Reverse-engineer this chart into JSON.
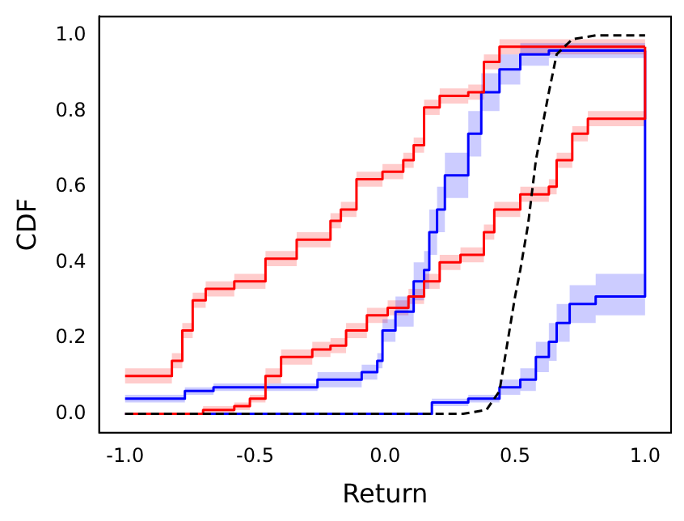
{
  "chart_data": {
    "type": "step",
    "xlabel": "Return",
    "ylabel": "CDF",
    "xlim": [
      -1.1,
      1.1
    ],
    "ylim": [
      -0.05,
      1.05
    ],
    "xticks": [
      {
        "value": -1,
        "label": "-1.0"
      },
      {
        "value": -0.5,
        "label": "-0.5"
      },
      {
        "value": 0,
        "label": "0.0"
      },
      {
        "value": 0.5,
        "label": "0.5"
      },
      {
        "value": 1,
        "label": "1.0"
      }
    ],
    "yticks": [
      {
        "value": 0,
        "label": "0.0"
      },
      {
        "value": 0.2,
        "label": "0.2"
      },
      {
        "value": 0.4,
        "label": "0.4"
      },
      {
        "value": 0.6,
        "label": "0.6"
      },
      {
        "value": 0.8,
        "label": "0.8"
      },
      {
        "value": 1,
        "label": "1.0"
      }
    ],
    "grid": false,
    "legend": false,
    "series": [
      {
        "color": "#ff0000",
        "x": [
          -1,
          -0.82,
          -0.78,
          -0.74,
          -0.69,
          -0.58,
          -0.46,
          -0.34,
          -0.21,
          -0.17,
          -0.11,
          -0.01,
          0.07,
          0.11,
          0.15,
          0.21,
          0.32,
          0.38,
          0.44,
          1
        ],
        "values": [
          0.1,
          0.14,
          0.22,
          0.3,
          0.33,
          0.35,
          0.41,
          0.46,
          0.51,
          0.54,
          0.62,
          0.64,
          0.67,
          0.71,
          0.81,
          0.84,
          0.85,
          0.93,
          0.97,
          0.97
        ],
        "lower": [
          0.08,
          0.12,
          0.2,
          0.28,
          0.31,
          0.33,
          0.39,
          0.44,
          0.49,
          0.52,
          0.6,
          0.62,
          0.65,
          0.69,
          0.79,
          0.82,
          0.83,
          0.91,
          0.95,
          0.95
        ],
        "upper": [
          0.12,
          0.16,
          0.24,
          0.32,
          0.35,
          0.37,
          0.43,
          0.48,
          0.53,
          0.56,
          0.64,
          0.66,
          0.69,
          0.73,
          0.83,
          0.86,
          0.87,
          0.95,
          0.99,
          0.99
        ]
      },
      {
        "color": "#ff0000",
        "x": [
          -1,
          -0.7,
          -0.58,
          -0.52,
          -0.46,
          -0.4,
          -0.28,
          -0.21,
          -0.15,
          -0.07,
          0.01,
          0.09,
          0.15,
          0.21,
          0.29,
          0.38,
          0.42,
          0.52,
          0.63,
          0.66,
          0.72,
          0.78,
          1
        ],
        "values": [
          0,
          0.01,
          0.02,
          0.04,
          0.1,
          0.15,
          0.17,
          0.18,
          0.22,
          0.26,
          0.28,
          0.31,
          0.35,
          0.4,
          0.42,
          0.48,
          0.54,
          0.58,
          0.6,
          0.67,
          0.74,
          0.78,
          0.97
        ],
        "lower": [
          0,
          0,
          0.01,
          0.03,
          0.08,
          0.13,
          0.15,
          0.16,
          0.2,
          0.24,
          0.26,
          0.29,
          0.33,
          0.38,
          0.4,
          0.46,
          0.52,
          0.56,
          0.58,
          0.65,
          0.72,
          0.76,
          0.76
        ],
        "upper": [
          0,
          0.02,
          0.03,
          0.05,
          0.12,
          0.17,
          0.19,
          0.2,
          0.24,
          0.28,
          0.3,
          0.33,
          0.37,
          0.42,
          0.44,
          0.5,
          0.56,
          0.6,
          0.62,
          0.69,
          0.76,
          0.8,
          0.8
        ]
      },
      {
        "color": "#0000ff",
        "x": [
          -1,
          -0.77,
          -0.66,
          -0.26,
          -0.09,
          -0.03,
          -0.01,
          0.04,
          0.11,
          0.15,
          0.17,
          0.2,
          0.23,
          0.32,
          0.37,
          0.44,
          0.52,
          0.63,
          1
        ],
        "values": [
          0.04,
          0.06,
          0.07,
          0.09,
          0.11,
          0.14,
          0.22,
          0.27,
          0.35,
          0.38,
          0.48,
          0.54,
          0.63,
          0.74,
          0.85,
          0.91,
          0.95,
          0.96,
          0.96
        ],
        "lower": [
          0.03,
          0.05,
          0.06,
          0.07,
          0.09,
          0.12,
          0.19,
          0.23,
          0.3,
          0.33,
          0.42,
          0.48,
          0.57,
          0.68,
          0.8,
          0.87,
          0.92,
          0.94,
          0.94
        ],
        "upper": [
          0.05,
          0.07,
          0.08,
          0.11,
          0.13,
          0.16,
          0.25,
          0.31,
          0.4,
          0.43,
          0.54,
          0.6,
          0.69,
          0.8,
          0.9,
          0.95,
          0.98,
          0.98,
          0.98
        ]
      },
      {
        "color": "#0000ff",
        "x": [
          -1,
          0.18,
          0.32,
          0.44,
          0.52,
          0.58,
          0.63,
          0.66,
          0.71,
          0.81,
          1
        ],
        "values": [
          0,
          0.03,
          0.04,
          0.07,
          0.09,
          0.15,
          0.19,
          0.24,
          0.29,
          0.31,
          0.96
        ],
        "lower": [
          null,
          0.02,
          0.03,
          0.05,
          0.06,
          0.11,
          0.14,
          0.19,
          0.24,
          0.26,
          0.26
        ],
        "upper": [
          null,
          0.04,
          0.05,
          0.09,
          0.12,
          0.19,
          0.24,
          0.29,
          0.34,
          0.37,
          0.37
        ]
      },
      {
        "type": "line",
        "line_style": "dashed",
        "color": "#000000",
        "x": [
          -1,
          0.3,
          0.39,
          0.44,
          0.5,
          0.52,
          0.55,
          0.58,
          0.63,
          0.66,
          0.72,
          0.81,
          1
        ],
        "values": [
          0,
          0,
          0.01,
          0.06,
          0.31,
          0.38,
          0.5,
          0.67,
          0.85,
          0.95,
          0.99,
          1,
          1
        ]
      }
    ]
  }
}
